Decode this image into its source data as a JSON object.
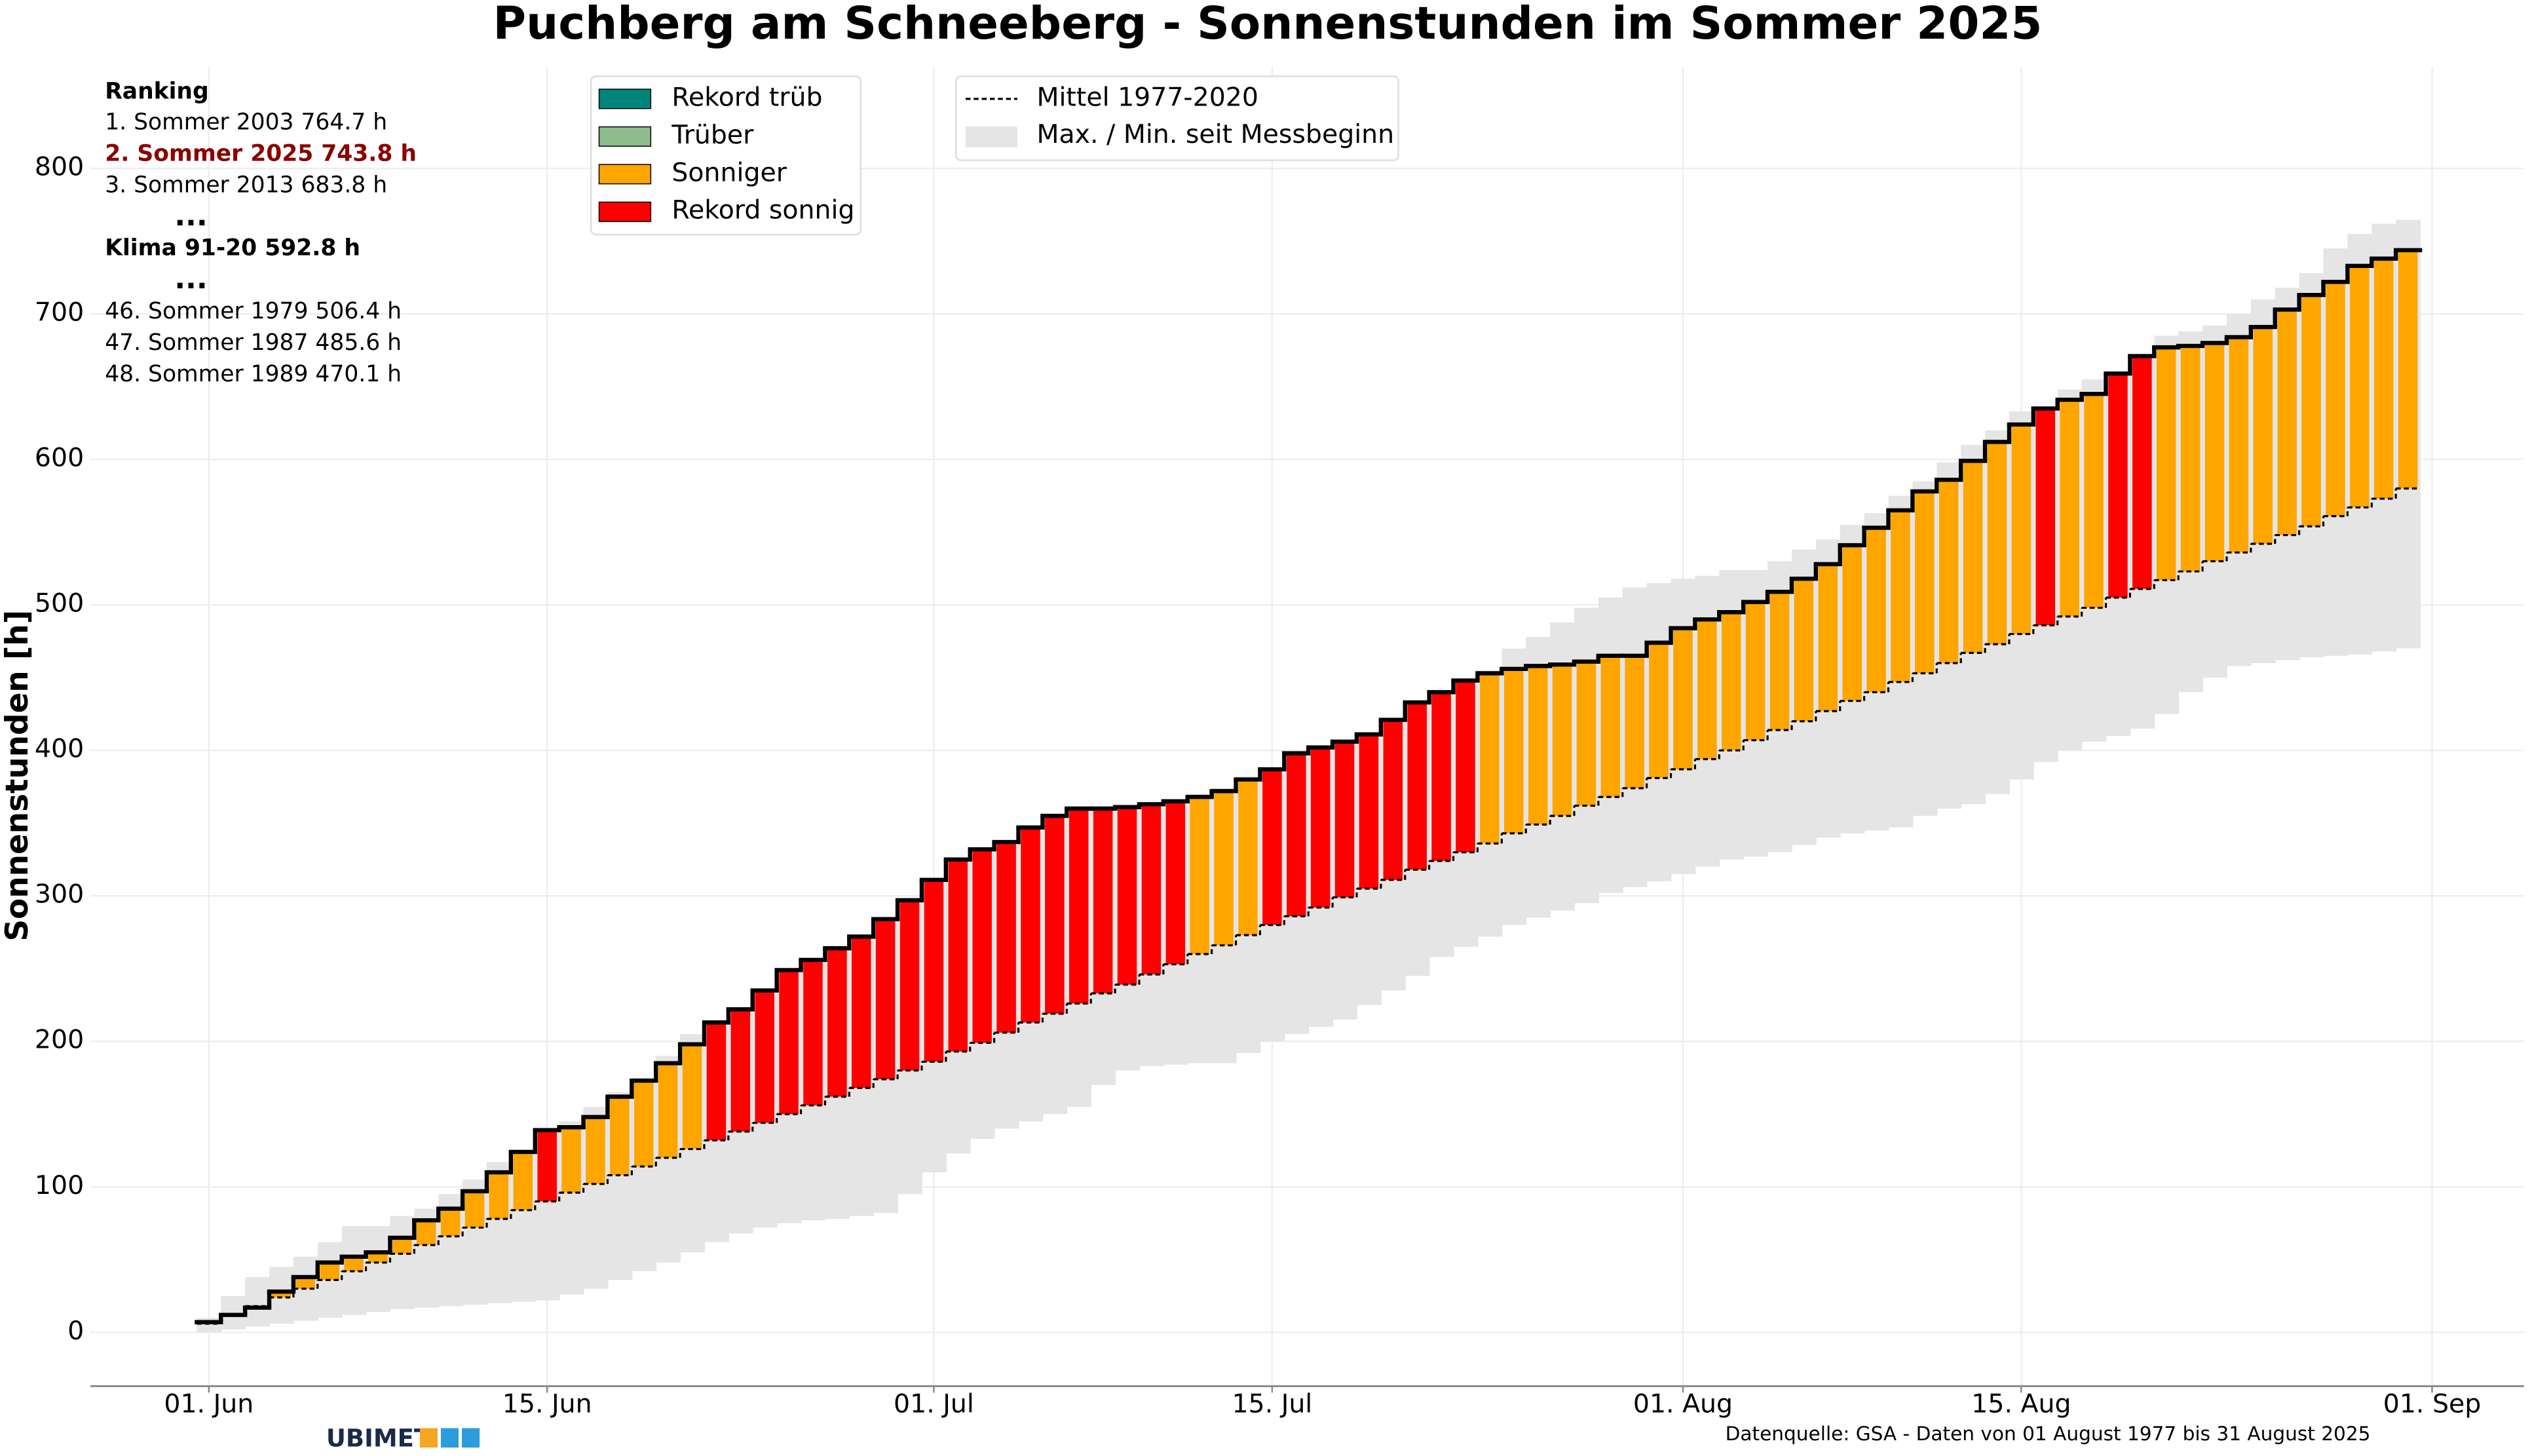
{
  "chart_data": {
    "type": "cumulative-bar",
    "title": "Puchberg am Schneeberg - Sonnenstunden im Sommer 2025",
    "y_label": "Sonnenstunden [h]",
    "source": "Datenquelle: GSA - Daten von 01 August 1977 bis 31 August 2025",
    "logo": "UBIMET",
    "xlim": [
      -4.9,
      95.8
    ],
    "xticks": [
      {
        "value": 0,
        "label": "01. Jun"
      },
      {
        "value": 14,
        "label": "15. Jun"
      },
      {
        "value": 30,
        "label": "01. Jul"
      },
      {
        "value": 44,
        "label": "15. Jul"
      },
      {
        "value": 61,
        "label": "01. Aug"
      },
      {
        "value": 75,
        "label": "15. Aug"
      },
      {
        "value": 92,
        "label": "01. Sep"
      }
    ],
    "ylim": [
      -37,
      870
    ],
    "yticks": [
      0,
      100,
      200,
      300,
      400,
      500,
      600,
      700,
      800
    ],
    "grid": true,
    "x": [
      0,
      1,
      2,
      3,
      4,
      5,
      6,
      7,
      8,
      9,
      10,
      11,
      12,
      13,
      14,
      15,
      16,
      17,
      18,
      19,
      20,
      21,
      22,
      23,
      24,
      25,
      26,
      27,
      28,
      29,
      30,
      31,
      32,
      33,
      34,
      35,
      36,
      37,
      38,
      39,
      40,
      41,
      42,
      43,
      44,
      45,
      46,
      47,
      48,
      49,
      50,
      51,
      52,
      53,
      54,
      55,
      56,
      57,
      58,
      59,
      60,
      61,
      62,
      63,
      64,
      65,
      66,
      67,
      68,
      69,
      70,
      71,
      72,
      73,
      74,
      75,
      76,
      77,
      78,
      79,
      80,
      81,
      82,
      83,
      84,
      85,
      86,
      87,
      88,
      89,
      90,
      91
    ],
    "values": [
      7,
      12,
      17,
      28,
      38,
      48,
      52,
      55,
      65,
      77,
      85,
      97,
      110,
      124,
      139,
      141,
      148,
      162,
      173,
      185,
      198,
      213,
      222,
      235,
      249,
      256,
      264,
      272,
      284,
      297,
      311,
      325,
      332,
      337,
      347,
      355,
      360,
      360,
      361,
      363,
      365,
      368,
      372,
      380,
      387,
      398,
      402,
      406,
      411,
      421,
      433,
      440,
      448,
      453,
      456,
      458,
      459,
      461,
      465,
      465,
      474,
      484,
      490,
      495,
      502,
      509,
      518,
      528,
      541,
      553,
      565,
      578,
      586,
      599,
      612,
      624,
      635,
      641,
      645,
      659,
      671,
      677,
      678,
      680,
      684,
      691,
      703,
      713,
      722,
      733,
      738,
      743.8
    ],
    "bar_colors": [
      "#ffa500",
      "#ffa500",
      "#ffa500",
      "#ffa500",
      "#ffa500",
      "#ffa500",
      "#ffa500",
      "#ffa500",
      "#ffa500",
      "#ffa500",
      "#ffa500",
      "#ffa500",
      "#ffa500",
      "#ffa500",
      "#ff0000",
      "#ffa500",
      "#ffa500",
      "#ffa500",
      "#ffa500",
      "#ffa500",
      "#ffa500",
      "#ff0000",
      "#ff0000",
      "#ff0000",
      "#ff0000",
      "#ff0000",
      "#ff0000",
      "#ff0000",
      "#ff0000",
      "#ff0000",
      "#ff0000",
      "#ff0000",
      "#ff0000",
      "#ff0000",
      "#ff0000",
      "#ff0000",
      "#ff0000",
      "#ff0000",
      "#ff0000",
      "#ff0000",
      "#ff0000",
      "#ffa500",
      "#ffa500",
      "#ffa500",
      "#ff0000",
      "#ff0000",
      "#ff0000",
      "#ff0000",
      "#ff0000",
      "#ff0000",
      "#ff0000",
      "#ff0000",
      "#ff0000",
      "#ffa500",
      "#ffa500",
      "#ffa500",
      "#ffa500",
      "#ffa500",
      "#ffa500",
      "#ffa500",
      "#ffa500",
      "#ffa500",
      "#ffa500",
      "#ffa500",
      "#ffa500",
      "#ffa500",
      "#ffa500",
      "#ffa500",
      "#ffa500",
      "#ffa500",
      "#ffa500",
      "#ffa500",
      "#ffa500",
      "#ffa500",
      "#ffa500",
      "#ffa500",
      "#ff0000",
      "#ffa500",
      "#ffa500",
      "#ff0000",
      "#ff0000",
      "#ffa500",
      "#ffa500",
      "#ffa500",
      "#ffa500",
      "#ffa500",
      "#ffa500",
      "#ffa500",
      "#ffa500",
      "#ffa500",
      "#ffa500",
      "#ffa500"
    ],
    "mean": {
      "name": "Mittel 1977-2020",
      "values": [
        6,
        12,
        18,
        24,
        30,
        36,
        42,
        48,
        54,
        60,
        66,
        72,
        78,
        84,
        90,
        96,
        102,
        108,
        114,
        120,
        126,
        132,
        138,
        144,
        150,
        156,
        162,
        168,
        174,
        180,
        186,
        193,
        199,
        206,
        213,
        219,
        226,
        233,
        239,
        246,
        253,
        260,
        266,
        273,
        280,
        286,
        292,
        299,
        305,
        311,
        318,
        324,
        330,
        336,
        343,
        349,
        355,
        362,
        368,
        374,
        381,
        387,
        394,
        400,
        407,
        414,
        420,
        427,
        434,
        440,
        447,
        453,
        460,
        467,
        473,
        480,
        486,
        492,
        498,
        505,
        511,
        517,
        523,
        530,
        536,
        542,
        548,
        554,
        561,
        567,
        573,
        580
      ]
    },
    "range": {
      "name": "Max. / Min. seit Messbeginn",
      "color": "#e5e5e5",
      "max": [
        10,
        25,
        38,
        45,
        52,
        62,
        73,
        73,
        80,
        85,
        95,
        105,
        117,
        125,
        139,
        145,
        155,
        165,
        175,
        190,
        205,
        213,
        222,
        235,
        249,
        256,
        264,
        272,
        284,
        297,
        311,
        325,
        332,
        337,
        347,
        355,
        360,
        360,
        361,
        363,
        365,
        370,
        374,
        382,
        387,
        398,
        402,
        406,
        411,
        421,
        433,
        440,
        448,
        455,
        470,
        478,
        488,
        498,
        505,
        512,
        515,
        518,
        520,
        524,
        524,
        530,
        538,
        545,
        555,
        563,
        575,
        585,
        598,
        610,
        620,
        633,
        635,
        648,
        655,
        659,
        671,
        685,
        688,
        692,
        700,
        710,
        718,
        728,
        745,
        755,
        762,
        764.7
      ],
      "min": [
        0,
        2,
        4,
        6,
        8,
        10,
        12,
        14,
        16,
        17,
        18,
        19,
        20,
        21,
        22,
        26,
        30,
        36,
        42,
        48,
        55,
        62,
        68,
        72,
        75,
        77,
        78,
        80,
        82,
        95,
        110,
        123,
        133,
        140,
        145,
        150,
        155,
        170,
        180,
        183,
        184,
        185,
        185,
        192,
        200,
        205,
        210,
        215,
        225,
        235,
        245,
        258,
        265,
        272,
        280,
        285,
        290,
        295,
        302,
        306,
        310,
        315,
        320,
        325,
        327,
        330,
        335,
        340,
        343,
        345,
        347,
        355,
        360,
        363,
        370,
        380,
        392,
        400,
        406,
        410,
        415,
        425,
        440,
        450,
        458,
        460,
        462,
        464,
        465,
        466,
        468,
        470.1
      ]
    },
    "bar_legend": [
      {
        "name": "Rekord trüb",
        "color": "#00857a"
      },
      {
        "name": "Trüber",
        "color": "#8fbc8f"
      },
      {
        "name": "Sonniger",
        "color": "#ffa500"
      },
      {
        "name": "Rekord sonnig",
        "color": "#ff0000"
      }
    ],
    "ranking": {
      "title": "Ranking",
      "entries": [
        {
          "text": "1.  Sommer 2003  764.7 h"
        },
        {
          "text": "2.  Sommer 2025  743.8 h",
          "color": "#8b0000",
          "bold": true
        },
        {
          "text": "3.  Sommer 2013  683.8 h"
        },
        {
          "text": "...",
          "bold": true
        },
        {
          "text": "Klima 91-20 592.8 h",
          "bold": true
        },
        {
          "text": "...",
          "bold": true
        },
        {
          "text": "46.  Sommer 1979  506.4 h"
        },
        {
          "text": "47.  Sommer 1987  485.6 h"
        },
        {
          "text": "48.  Sommer 1989  470.1 h"
        }
      ]
    }
  }
}
